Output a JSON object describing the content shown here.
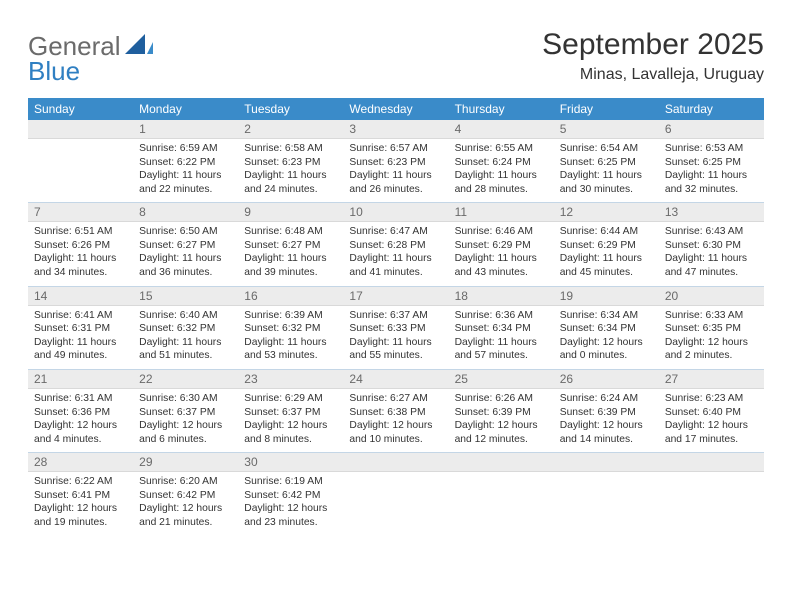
{
  "logo": {
    "line1": "General",
    "line2": "Blue"
  },
  "title": "September 2025",
  "subtitle": "Minas, Lavalleja, Uruguay",
  "colors": {
    "header_bg": "#3a8bc9",
    "header_fg": "#ffffff",
    "daynum_bg": "#ececec",
    "daynum_fg": "#6a6a6a",
    "cell_border": "#c4d6e6",
    "logo_gray": "#6b6b6b",
    "logo_blue": "#2f7fc2",
    "text": "#333333",
    "background": "#ffffff"
  },
  "headers": [
    "Sunday",
    "Monday",
    "Tuesday",
    "Wednesday",
    "Thursday",
    "Friday",
    "Saturday"
  ],
  "weeks": [
    {
      "nums": [
        "",
        "1",
        "2",
        "3",
        "4",
        "5",
        "6"
      ],
      "cells": [
        {
          "sunrise": "",
          "sunset": "",
          "daylight": ""
        },
        {
          "sunrise": "Sunrise: 6:59 AM",
          "sunset": "Sunset: 6:22 PM",
          "daylight": "Daylight: 11 hours and 22 minutes."
        },
        {
          "sunrise": "Sunrise: 6:58 AM",
          "sunset": "Sunset: 6:23 PM",
          "daylight": "Daylight: 11 hours and 24 minutes."
        },
        {
          "sunrise": "Sunrise: 6:57 AM",
          "sunset": "Sunset: 6:23 PM",
          "daylight": "Daylight: 11 hours and 26 minutes."
        },
        {
          "sunrise": "Sunrise: 6:55 AM",
          "sunset": "Sunset: 6:24 PM",
          "daylight": "Daylight: 11 hours and 28 minutes."
        },
        {
          "sunrise": "Sunrise: 6:54 AM",
          "sunset": "Sunset: 6:25 PM",
          "daylight": "Daylight: 11 hours and 30 minutes."
        },
        {
          "sunrise": "Sunrise: 6:53 AM",
          "sunset": "Sunset: 6:25 PM",
          "daylight": "Daylight: 11 hours and 32 minutes."
        }
      ]
    },
    {
      "nums": [
        "7",
        "8",
        "9",
        "10",
        "11",
        "12",
        "13"
      ],
      "cells": [
        {
          "sunrise": "Sunrise: 6:51 AM",
          "sunset": "Sunset: 6:26 PM",
          "daylight": "Daylight: 11 hours and 34 minutes."
        },
        {
          "sunrise": "Sunrise: 6:50 AM",
          "sunset": "Sunset: 6:27 PM",
          "daylight": "Daylight: 11 hours and 36 minutes."
        },
        {
          "sunrise": "Sunrise: 6:48 AM",
          "sunset": "Sunset: 6:27 PM",
          "daylight": "Daylight: 11 hours and 39 minutes."
        },
        {
          "sunrise": "Sunrise: 6:47 AM",
          "sunset": "Sunset: 6:28 PM",
          "daylight": "Daylight: 11 hours and 41 minutes."
        },
        {
          "sunrise": "Sunrise: 6:46 AM",
          "sunset": "Sunset: 6:29 PM",
          "daylight": "Daylight: 11 hours and 43 minutes."
        },
        {
          "sunrise": "Sunrise: 6:44 AM",
          "sunset": "Sunset: 6:29 PM",
          "daylight": "Daylight: 11 hours and 45 minutes."
        },
        {
          "sunrise": "Sunrise: 6:43 AM",
          "sunset": "Sunset: 6:30 PM",
          "daylight": "Daylight: 11 hours and 47 minutes."
        }
      ]
    },
    {
      "nums": [
        "14",
        "15",
        "16",
        "17",
        "18",
        "19",
        "20"
      ],
      "cells": [
        {
          "sunrise": "Sunrise: 6:41 AM",
          "sunset": "Sunset: 6:31 PM",
          "daylight": "Daylight: 11 hours and 49 minutes."
        },
        {
          "sunrise": "Sunrise: 6:40 AM",
          "sunset": "Sunset: 6:32 PM",
          "daylight": "Daylight: 11 hours and 51 minutes."
        },
        {
          "sunrise": "Sunrise: 6:39 AM",
          "sunset": "Sunset: 6:32 PM",
          "daylight": "Daylight: 11 hours and 53 minutes."
        },
        {
          "sunrise": "Sunrise: 6:37 AM",
          "sunset": "Sunset: 6:33 PM",
          "daylight": "Daylight: 11 hours and 55 minutes."
        },
        {
          "sunrise": "Sunrise: 6:36 AM",
          "sunset": "Sunset: 6:34 PM",
          "daylight": "Daylight: 11 hours and 57 minutes."
        },
        {
          "sunrise": "Sunrise: 6:34 AM",
          "sunset": "Sunset: 6:34 PM",
          "daylight": "Daylight: 12 hours and 0 minutes."
        },
        {
          "sunrise": "Sunrise: 6:33 AM",
          "sunset": "Sunset: 6:35 PM",
          "daylight": "Daylight: 12 hours and 2 minutes."
        }
      ]
    },
    {
      "nums": [
        "21",
        "22",
        "23",
        "24",
        "25",
        "26",
        "27"
      ],
      "cells": [
        {
          "sunrise": "Sunrise: 6:31 AM",
          "sunset": "Sunset: 6:36 PM",
          "daylight": "Daylight: 12 hours and 4 minutes."
        },
        {
          "sunrise": "Sunrise: 6:30 AM",
          "sunset": "Sunset: 6:37 PM",
          "daylight": "Daylight: 12 hours and 6 minutes."
        },
        {
          "sunrise": "Sunrise: 6:29 AM",
          "sunset": "Sunset: 6:37 PM",
          "daylight": "Daylight: 12 hours and 8 minutes."
        },
        {
          "sunrise": "Sunrise: 6:27 AM",
          "sunset": "Sunset: 6:38 PM",
          "daylight": "Daylight: 12 hours and 10 minutes."
        },
        {
          "sunrise": "Sunrise: 6:26 AM",
          "sunset": "Sunset: 6:39 PM",
          "daylight": "Daylight: 12 hours and 12 minutes."
        },
        {
          "sunrise": "Sunrise: 6:24 AM",
          "sunset": "Sunset: 6:39 PM",
          "daylight": "Daylight: 12 hours and 14 minutes."
        },
        {
          "sunrise": "Sunrise: 6:23 AM",
          "sunset": "Sunset: 6:40 PM",
          "daylight": "Daylight: 12 hours and 17 minutes."
        }
      ]
    },
    {
      "nums": [
        "28",
        "29",
        "30",
        "",
        "",
        "",
        ""
      ],
      "cells": [
        {
          "sunrise": "Sunrise: 6:22 AM",
          "sunset": "Sunset: 6:41 PM",
          "daylight": "Daylight: 12 hours and 19 minutes."
        },
        {
          "sunrise": "Sunrise: 6:20 AM",
          "sunset": "Sunset: 6:42 PM",
          "daylight": "Daylight: 12 hours and 21 minutes."
        },
        {
          "sunrise": "Sunrise: 6:19 AM",
          "sunset": "Sunset: 6:42 PM",
          "daylight": "Daylight: 12 hours and 23 minutes."
        },
        {
          "sunrise": "",
          "sunset": "",
          "daylight": ""
        },
        {
          "sunrise": "",
          "sunset": "",
          "daylight": ""
        },
        {
          "sunrise": "",
          "sunset": "",
          "daylight": ""
        },
        {
          "sunrise": "",
          "sunset": "",
          "daylight": ""
        }
      ]
    }
  ]
}
